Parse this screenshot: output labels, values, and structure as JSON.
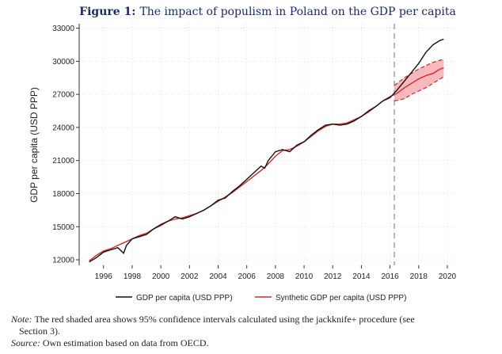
{
  "figure_label": "Figure 1:",
  "figure_title": "The impact of populism in Poland on the GDP per capita",
  "note_label": "Note:",
  "note_text": "The red shaded area shows 95% confidence intervals calculated using the jackknife+ procedure (see",
  "note_text_cont": "Section 3).",
  "source_label": "Source:",
  "source_text": "Own estimation based on data from OECD.",
  "colors": {
    "actual": "#111111",
    "synthetic": "#d62828",
    "band": "#f4a0a8",
    "treatment_line": "#888888"
  },
  "chart_data": {
    "type": "line",
    "title": "Figure 1: The impact of populism in Poland on the GDP per capita",
    "xlabel": "",
    "ylabel": "GDP per capita (USD PPP)",
    "xlim": [
      1994.3,
      2020.5
    ],
    "ylim": [
      11500,
      33400
    ],
    "xticks": [
      1996,
      1998,
      2000,
      2002,
      2004,
      2006,
      2008,
      2010,
      2012,
      2014,
      2016,
      2018,
      2020
    ],
    "yticks": [
      12000,
      15000,
      18000,
      21000,
      24000,
      27000,
      30000,
      33000
    ],
    "ytick_labels": [
      "12000",
      "15000",
      "18000",
      "21000",
      "24000",
      "27000",
      "30000",
      "33000"
    ],
    "xtick_labels": [
      "1996",
      "1998",
      "2000",
      "2002",
      "2004",
      "2006",
      "2008",
      "2010",
      "2012",
      "2014",
      "2016",
      "2018",
      "2020"
    ],
    "treatment_year": 2016.3,
    "legend": {
      "placement": "bottom",
      "entries": [
        "GDP per capita (USD PPP)",
        "Synthetic GDP per capita (USD PPP)"
      ]
    },
    "grid": true,
    "series": [
      {
        "name": "GDP per capita (USD PPP)",
        "x": [
          1995.0,
          1995.5,
          1996.0,
          1996.5,
          1997.0,
          1997.4,
          1997.6,
          1998.0,
          1998.5,
          1999.0,
          1999.5,
          2000.0,
          2000.5,
          2001.0,
          2001.5,
          2002.0,
          2002.5,
          2003.0,
          2003.5,
          2004.0,
          2004.5,
          2005.0,
          2005.5,
          2006.0,
          2006.5,
          2007.0,
          2007.25,
          2007.5,
          2008.0,
          2008.5,
          2009.0,
          2009.5,
          2010.0,
          2010.5,
          2011.0,
          2011.5,
          2012.0,
          2012.5,
          2013.0,
          2013.5,
          2014.0,
          2014.5,
          2015.0,
          2015.5,
          2016.0,
          2016.5,
          2017.0,
          2017.5,
          2018.0,
          2018.5,
          2019.0,
          2019.5,
          2019.75
        ],
        "values": [
          11800,
          12200,
          12700,
          12900,
          13100,
          12600,
          13300,
          13900,
          14100,
          14300,
          14800,
          15200,
          15500,
          15900,
          15700,
          15900,
          16200,
          16500,
          16900,
          17400,
          17600,
          18200,
          18700,
          19300,
          19900,
          20500,
          20300,
          21000,
          21800,
          22000,
          21800,
          22400,
          22700,
          23300,
          23800,
          24200,
          24300,
          24200,
          24300,
          24600,
          25000,
          25500,
          25900,
          26400,
          26700,
          27400,
          28200,
          29000,
          29800,
          30800,
          31500,
          31900,
          32000
        ]
      },
      {
        "name": "Synthetic GDP per capita (USD PPP)",
        "x": [
          1995.0,
          1995.5,
          1996.0,
          1996.5,
          1997.0,
          1997.5,
          1998.0,
          1998.5,
          1999.0,
          1999.5,
          2000.0,
          2000.5,
          2001.0,
          2001.5,
          2002.0,
          2002.5,
          2003.0,
          2003.5,
          2004.0,
          2004.5,
          2005.0,
          2005.5,
          2006.0,
          2006.5,
          2007.0,
          2007.5,
          2008.0,
          2008.5,
          2009.0,
          2009.5,
          2010.0,
          2010.5,
          2011.0,
          2011.5,
          2012.0,
          2012.5,
          2013.0,
          2013.5,
          2014.0,
          2014.5,
          2015.0,
          2015.5,
          2016.0,
          2016.5,
          2017.0,
          2017.5,
          2018.0,
          2018.5,
          2019.0,
          2019.5,
          2019.75
        ],
        "values": [
          11900,
          12400,
          12800,
          13000,
          13300,
          13600,
          13900,
          14200,
          14400,
          14800,
          15100,
          15500,
          15700,
          15800,
          16000,
          16200,
          16500,
          16900,
          17300,
          17700,
          18100,
          18600,
          19100,
          19600,
          20100,
          20700,
          21400,
          21900,
          22000,
          22300,
          22700,
          23200,
          23700,
          24100,
          24300,
          24300,
          24400,
          24700,
          25000,
          25400,
          25900,
          26400,
          26800,
          27100,
          27600,
          28000,
          28400,
          28700,
          28900,
          29300,
          29400
        ]
      }
    ],
    "confidence_band": {
      "x": [
        2016.3,
        2017.0,
        2017.5,
        2018.0,
        2018.5,
        2019.0,
        2019.5,
        2019.75
      ],
      "lower": [
        26400,
        26600,
        27000,
        27300,
        27600,
        28000,
        28400,
        28600
      ],
      "upper": [
        27800,
        28500,
        28900,
        29300,
        29600,
        29900,
        30100,
        30200
      ]
    }
  }
}
